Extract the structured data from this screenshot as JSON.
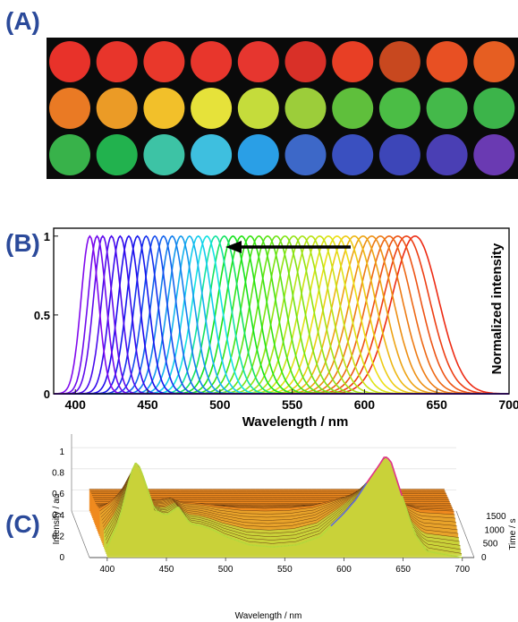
{
  "figure": {
    "panel_a_label": "(A)",
    "panel_b_label": "(B)",
    "panel_c_label": "(C)"
  },
  "panel_a": {
    "rows": [
      [
        "#e8322a",
        "#e8352b",
        "#e9382b",
        "#e8362c",
        "#e6362f",
        "#d93028",
        "#e83f25",
        "#c8481f",
        "#e85023",
        "#e65e22"
      ],
      [
        "#ea7a24",
        "#eb9b26",
        "#f2c02a",
        "#e6e23a",
        "#c5dc3b",
        "#9ccd3a",
        "#5fbf3c",
        "#4bbd45",
        "#44b94a",
        "#3cb44a"
      ],
      [
        "#38b24a",
        "#22b24e",
        "#3dc3a5",
        "#3ebfdf",
        "#2a9fe6",
        "#3d68c8",
        "#3a50c0",
        "#3d46b8",
        "#4a3fb4",
        "#6a3ab2"
      ]
    ]
  },
  "panel_b": {
    "xlabel": "Wavelength / nm",
    "ylabel": "Normalized intensity",
    "x_ticks": [
      "400",
      "450",
      "500",
      "550",
      "600",
      "650",
      "700"
    ],
    "y_ticks": [
      "0",
      "0.5",
      "1"
    ]
  },
  "panel_c": {
    "xlabel": "Wavelength / nm",
    "ylabel": "Intensity / au",
    "zlabel": "Time / s",
    "x_ticks": [
      "400",
      "450",
      "500",
      "550",
      "600",
      "650",
      "700"
    ],
    "y_ticks": [
      "0",
      "0.2",
      "0.4",
      "0.6",
      "0.8",
      "1"
    ],
    "time_ticks": [
      "0",
      "500",
      "1000",
      "1500"
    ]
  },
  "chart_data": [
    {
      "type": "line",
      "panel": "B",
      "description_series": "normalized emission spectra, peaks shifting from ~635 nm to ~410 nm",
      "peak_wavelengths": [
        635,
        629,
        623,
        617,
        611,
        605,
        599,
        593,
        587,
        581,
        575,
        569,
        563,
        557,
        551,
        545,
        539,
        533,
        527,
        521,
        515,
        509,
        503,
        497,
        491,
        485,
        479,
        473,
        467,
        461,
        455,
        449,
        443,
        437,
        431,
        425,
        419,
        415,
        410
      ],
      "peak_value": 1,
      "xlim": [
        385,
        700
      ],
      "ylim": [
        0,
        1.05
      ],
      "xlabel": "Wavelength / nm",
      "ylabel": "Normalized intensity",
      "x_ticks": [
        400,
        450,
        500,
        550,
        600,
        650,
        700
      ],
      "y_ticks": [
        0,
        0.5,
        1
      ]
    },
    {
      "type": "area",
      "panel": "C",
      "x": [
        400,
        410,
        420,
        425,
        430,
        440,
        450,
        460,
        470,
        480,
        490,
        500,
        520,
        540,
        560,
        580,
        600,
        610,
        620,
        630,
        635,
        640,
        650,
        660,
        670,
        700
      ],
      "values_t0": [
        0.1,
        0.35,
        0.8,
        0.92,
        0.78,
        0.45,
        0.4,
        0.48,
        0.32,
        0.3,
        0.26,
        0.2,
        0.12,
        0.1,
        0.12,
        0.2,
        0.42,
        0.55,
        0.72,
        0.88,
        0.97,
        0.9,
        0.55,
        0.22,
        0.06,
        0.0
      ],
      "xlim": [
        385,
        710
      ],
      "ylim": [
        0,
        1
      ],
      "time_range": [
        0,
        1700
      ],
      "xlabel": "Wavelength / nm",
      "ylabel": "Intensity / au",
      "zlabel": "Time / s"
    }
  ]
}
